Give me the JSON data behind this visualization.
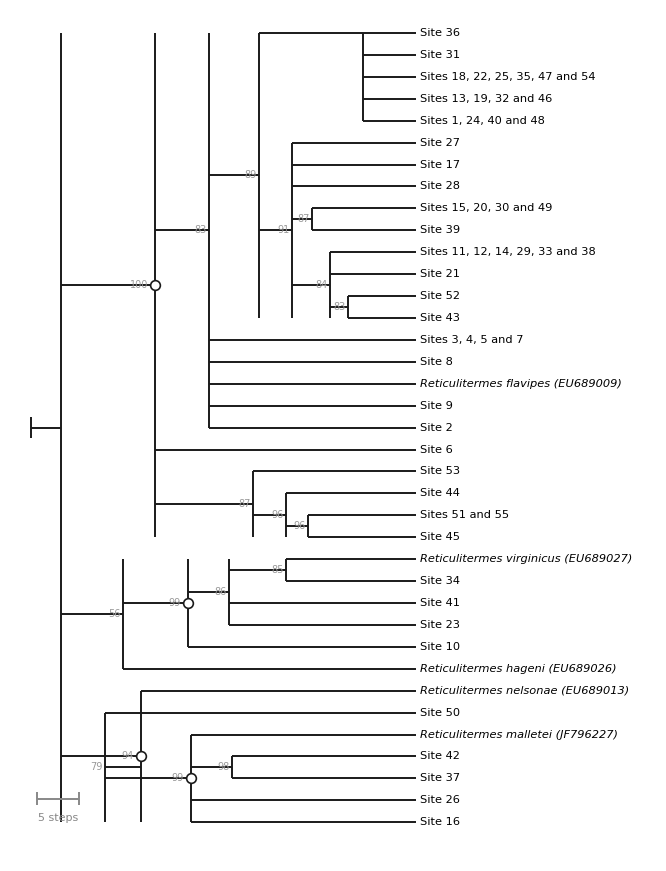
{
  "line_color": "#1a1a1a",
  "bootstrap_color": "#999999",
  "bootstrap_fontsize": 7.0,
  "label_fontsize": 8.2,
  "italic_labels": [
    "Reticulitermes flavipes (EU689009)",
    "Reticulitermes virginicus (EU689027)",
    "Reticulitermes hageni (EU689026)",
    "Reticulitermes nelsonae (EU689013)",
    "Reticulitermes malletei (JF796227)"
  ],
  "scale_bar_label": "5 steps",
  "leaf_labels": [
    "Site 36",
    "Site 31",
    "Sites 18, 22, 25, 35, 47 and 54",
    "Sites 13, 19, 32 and 46",
    "Sites 1, 24, 40 and 48",
    "Site 27",
    "Site 17",
    "Site 28",
    "Sites 15, 20, 30 and 49",
    "Site 39",
    "Sites 11, 12, 14, 29, 33 and 38",
    "Site 21",
    "Site 52",
    "Site 43",
    "Sites 3, 4, 5 and 7",
    "Site 8",
    "Reticulitermes flavipes (EU689009)",
    "Site 9",
    "Site 2",
    "Site 6",
    "Site 53",
    "Site 44",
    "Sites 51 and 55",
    "Site 45",
    "Reticulitermes virginicus (EU689027)",
    "Site 34",
    "Site 41",
    "Site 23",
    "Site 10",
    "Reticulitermes hageni (EU689026)",
    "Reticulitermes nelsonae (EU689013)",
    "Site 50",
    "Reticulitermes malletei (JF796227)",
    "Site 42",
    "Site 37",
    "Site 26",
    "Site 16"
  ]
}
